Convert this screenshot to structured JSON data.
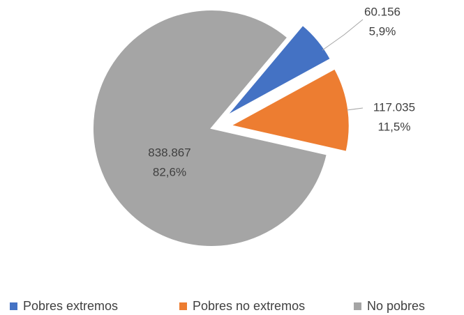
{
  "chart_data": {
    "type": "pie",
    "categories": [
      "Pobres extremos",
      "Pobres no extremos",
      "No pobres"
    ],
    "values": [
      60156,
      117035,
      838867
    ],
    "value_labels": [
      "60.156",
      "117.035",
      "838.867"
    ],
    "percent_labels": [
      "5,9%",
      "11,5%",
      "82,6%"
    ],
    "colors": [
      "#4472c4",
      "#ed7d31",
      "#a5a5a5"
    ],
    "legend": "bottom"
  }
}
